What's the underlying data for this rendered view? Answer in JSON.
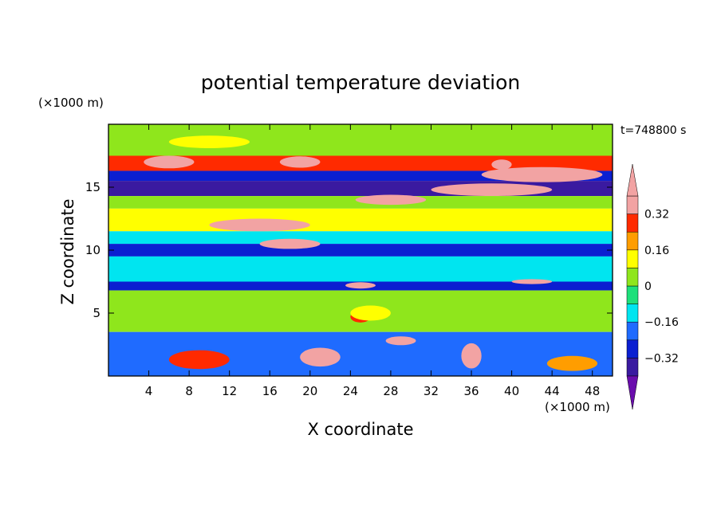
{
  "chart_data": {
    "type": "heatmap",
    "title": "potential temperature deviation",
    "xlabel": "X coordinate",
    "ylabel": "Z coordinate",
    "x_units": "(×1000 m)",
    "y_units": "(×1000 m)",
    "time_label": "t=748800 s",
    "xlim": [
      0,
      50
    ],
    "ylim": [
      0,
      20
    ],
    "x_ticks": [
      4,
      8,
      12,
      16,
      20,
      24,
      28,
      32,
      36,
      40,
      44,
      48
    ],
    "y_ticks": [
      5,
      10,
      15
    ],
    "colorbar": {
      "levels": [
        -0.4,
        -0.32,
        -0.24,
        -0.16,
        -0.08,
        0,
        0.08,
        0.16,
        0.24,
        0.32,
        0.4
      ],
      "labels": [
        "0.32",
        "0.16",
        "0",
        "−0.16",
        "−0.32"
      ],
      "label_values": [
        0.32,
        0.16,
        0,
        -0.16,
        -0.32
      ],
      "colors": [
        "#6a0dad",
        "#3a1aa0",
        "#0b1fd1",
        "#1f6bff",
        "#00e5f0",
        "#1ee07a",
        "#8fe61c",
        "#ffff00",
        "#ff9d00",
        "#ff2a00",
        "#f2a3a3"
      ],
      "extend": "both"
    },
    "bands": [
      {
        "z": [
          17.5,
          20
        ],
        "level": 0.0
      },
      {
        "z": [
          16.3,
          17.5
        ],
        "level": 0.3
      },
      {
        "z": [
          15.5,
          16.3
        ],
        "level": -0.3
      },
      {
        "z": [
          14.3,
          15.5
        ],
        "level": -0.4
      },
      {
        "z": [
          13.3,
          14.3
        ],
        "level": 0.05
      },
      {
        "z": [
          11.5,
          13.3
        ],
        "level": 0.1
      },
      {
        "z": [
          10.5,
          11.5
        ],
        "level": -0.1
      },
      {
        "z": [
          9.5,
          10.5
        ],
        "level": -0.25
      },
      {
        "z": [
          7.5,
          9.5
        ],
        "level": -0.1
      },
      {
        "z": [
          6.8,
          7.5
        ],
        "level": -0.3
      },
      {
        "z": [
          3.5,
          6.8
        ],
        "level": 0.02
      },
      {
        "z": [
          0,
          3.5
        ],
        "level": -0.2
      }
    ],
    "features": [
      {
        "x": 6,
        "z": 17.0,
        "w": 5,
        "h": 1.0,
        "level": 0.4
      },
      {
        "x": 19,
        "z": 17.0,
        "w": 4,
        "h": 0.9,
        "level": 0.4
      },
      {
        "x": 43,
        "z": 16.0,
        "w": 12,
        "h": 1.2,
        "level": 0.4
      },
      {
        "x": 39,
        "z": 16.8,
        "w": 2,
        "h": 0.8,
        "level": 0.35
      },
      {
        "x": 38,
        "z": 14.8,
        "w": 12,
        "h": 1.0,
        "level": 0.4
      },
      {
        "x": 28,
        "z": 14.0,
        "w": 7,
        "h": 0.8,
        "level": 0.4
      },
      {
        "x": 15,
        "z": 12.0,
        "w": 10,
        "h": 1.0,
        "level": 0.4
      },
      {
        "x": 18,
        "z": 10.5,
        "w": 6,
        "h": 0.8,
        "level": 0.4
      },
      {
        "x": 25,
        "z": 7.2,
        "w": 3,
        "h": 0.5,
        "level": 0.4
      },
      {
        "x": 42,
        "z": 7.5,
        "w": 4,
        "h": 0.4,
        "level": 0.4
      },
      {
        "x": 25,
        "z": 4.7,
        "w": 2,
        "h": 0.9,
        "level": 0.25
      },
      {
        "x": 10,
        "z": 18.6,
        "w": 8,
        "h": 1.0,
        "level": 0.15
      },
      {
        "x": 26,
        "z": 5.0,
        "w": 4,
        "h": 1.2,
        "level": 0.1
      },
      {
        "x": 21,
        "z": 1.5,
        "w": 4,
        "h": 1.5,
        "level": 0.4
      },
      {
        "x": 36,
        "z": 1.6,
        "w": 2,
        "h": 2.0,
        "level": 0.4
      },
      {
        "x": 9,
        "z": 1.3,
        "w": 6,
        "h": 1.5,
        "level": 0.3
      },
      {
        "x": 46,
        "z": 1.0,
        "w": 5,
        "h": 1.2,
        "level": 0.2
      },
      {
        "x": 29,
        "z": 2.8,
        "w": 3,
        "h": 0.7,
        "level": 0.4
      }
    ]
  }
}
